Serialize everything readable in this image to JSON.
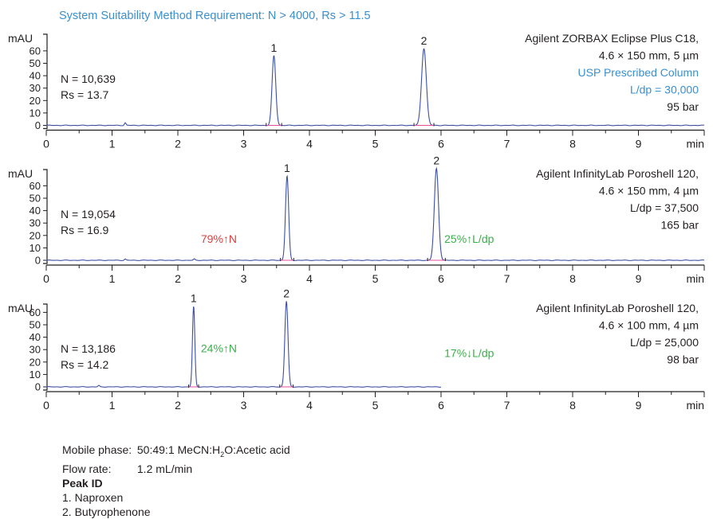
{
  "header": {
    "text": "System Suitability Method Requirement:  N > 4000, Rs > 11.5",
    "color": "#3a8fcf"
  },
  "chart_data": [
    {
      "type": "line",
      "ylabel": "mAU",
      "xlabel": "min",
      "xlim": [
        0,
        10
      ],
      "ylim": [
        0,
        70
      ],
      "x_ticks": [
        "0",
        "1",
        "2",
        "3",
        "4",
        "5",
        "6",
        "7",
        "8",
        "9"
      ],
      "y_ticks": [
        "0",
        "10",
        "20",
        "30",
        "40",
        "50",
        "60"
      ],
      "series": [
        {
          "color": "#3d4fa3",
          "x_end": 10,
          "peaks": [
            {
              "x": 1.2,
              "y": 2,
              "w": 0.012
            },
            {
              "x": 3.46,
              "y": 56,
              "w": 0.028
            },
            {
              "x": 5.74,
              "y": 62,
              "w": 0.036
            }
          ]
        }
      ],
      "peak_labels": [
        {
          "text": "1",
          "x": 3.46,
          "y": 56
        },
        {
          "text": "2",
          "x": 5.74,
          "y": 62
        }
      ],
      "stats": [
        "N = 10,639",
        "Rs = 13.7"
      ],
      "column_info": [
        {
          "text": "Agilent ZORBAX Eclipse Plus C18,",
          "color": "#231f20"
        },
        {
          "text": "4.6 × 150 mm, 5 µm",
          "color": "#231f20"
        },
        {
          "text": "USP Prescribed Column",
          "color": "#3a8fcf"
        },
        {
          "text": "L/dp = 30,000",
          "color": "#3a8fcf"
        },
        {
          "text": "95 bar",
          "color": "#231f20"
        }
      ],
      "annotations": []
    },
    {
      "type": "line",
      "ylabel": "mAU",
      "xlabel": "min",
      "xlim": [
        0,
        10
      ],
      "ylim": [
        0,
        70
      ],
      "x_ticks": [
        "0",
        "1",
        "2",
        "3",
        "4",
        "5",
        "6",
        "7",
        "8",
        "9"
      ],
      "y_ticks": [
        "0",
        "10",
        "20",
        "30",
        "40",
        "50",
        "60"
      ],
      "series": [
        {
          "color": "#3d4fa3",
          "x_end": 10,
          "peaks": [
            {
              "x": 1.2,
              "y": 1,
              "w": 0.012
            },
            {
              "x": 2.25,
              "y": 1,
              "w": 0.012
            },
            {
              "x": 3.66,
              "y": 68,
              "w": 0.024
            },
            {
              "x": 5.93,
              "y": 74,
              "w": 0.032
            }
          ]
        }
      ],
      "peak_labels": [
        {
          "text": "1",
          "x": 3.66,
          "y": 68
        },
        {
          "text": "2",
          "x": 5.93,
          "y": 74
        }
      ],
      "stats": [
        "N = 19,054",
        "Rs = 16.9"
      ],
      "column_info": [
        {
          "text": "Agilent InfinityLab Poroshell 120,",
          "color": "#231f20"
        },
        {
          "text": "4.6 × 150 mm, 4 µm",
          "color": "#231f20"
        },
        {
          "text": "L/dp = 37,500",
          "color": "#231f20"
        },
        {
          "text": "165 bar",
          "color": "#231f20"
        }
      ],
      "annotations": [
        {
          "text": "79%↑N",
          "x": 2.35,
          "y": 14,
          "color": "#e03c3c"
        },
        {
          "text": "25%↑L/dp",
          "x": 6.05,
          "y": 14,
          "color": "#3ab04a"
        }
      ]
    },
    {
      "type": "line",
      "ylabel": "mAU",
      "xlabel": "min",
      "xlim": [
        0,
        10
      ],
      "ylim": [
        0,
        70
      ],
      "x_ticks": [
        "0",
        "1",
        "2",
        "3",
        "4",
        "5",
        "6",
        "7",
        "8",
        "9"
      ],
      "y_ticks": [
        "0",
        "10",
        "20",
        "30",
        "40",
        "50",
        "60"
      ],
      "series": [
        {
          "color": "#3d4fa3",
          "x_end": 6.0,
          "peaks": [
            {
              "x": 0.8,
              "y": 1,
              "w": 0.012
            },
            {
              "x": 2.24,
              "y": 65,
              "w": 0.018
            },
            {
              "x": 3.65,
              "y": 69,
              "w": 0.024
            }
          ]
        }
      ],
      "peak_labels": [
        {
          "text": "1",
          "x": 2.24,
          "y": 65
        },
        {
          "text": "2",
          "x": 3.65,
          "y": 69
        }
      ],
      "stats": [
        "N = 13,186",
        "Rs = 14.2"
      ],
      "column_info": [
        {
          "text": "Agilent InfinityLab Poroshell 120,",
          "color": "#231f20"
        },
        {
          "text": "4.6 × 100 mm, 4 µm",
          "color": "#231f20"
        },
        {
          "text": "L/dp = 25,000",
          "color": "#231f20"
        },
        {
          "text": "98 bar",
          "color": "#231f20"
        }
      ],
      "annotations": [
        {
          "text": "24%↑N",
          "x": 2.35,
          "y": 28,
          "color": "#3ab04a"
        },
        {
          "text": "17%↓L/dp",
          "x": 6.05,
          "y": 24,
          "color": "#3ab04a"
        }
      ]
    }
  ],
  "footer": {
    "mobile_phase_label": "Mobile phase:",
    "mobile_phase_value_1": "50:49:1 MeCN:H",
    "mobile_phase_sub": "2",
    "mobile_phase_value_2": "O:Acetic acid",
    "flow_rate_label": "Flow rate:",
    "flow_rate_value": "1.2 mL/min",
    "peak_id_heading": "Peak ID",
    "peak_1": "1. Naproxen",
    "peak_2": "2. Butyrophenone"
  }
}
